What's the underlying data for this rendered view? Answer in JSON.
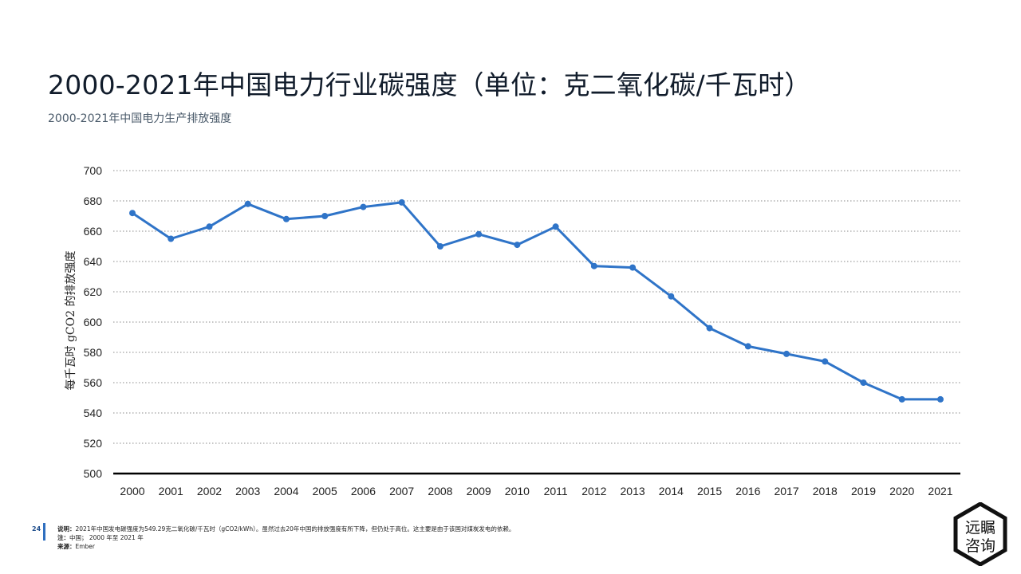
{
  "page": {
    "title": "2000-2021年中国电力行业碳强度（单位：克二氧化碳/千瓦时）",
    "subtitle": "2000-2021年中国电力生产排放强度",
    "page_number": "24",
    "note_label": "说明：",
    "note_text": "2021年中国发电碳强度为549.29克二氧化碳/千瓦时（gCO2/kWh）。虽然过去20年中国的排放强度有所下降，但仍处于高位。这主要是由于该国对煤炭发电的依赖。",
    "region_label": "注：",
    "region_text": "中国；  2000 年至 2021 年",
    "source_label": "来源：",
    "source_text": "Ember",
    "logo_line1": "远瞩",
    "logo_line2": "咨询"
  },
  "chart_data": {
    "type": "line",
    "title": "",
    "xlabel": "",
    "ylabel": "每千瓦时 gCO2 的排放强度",
    "categories": [
      "2000",
      "2001",
      "2002",
      "2003",
      "2004",
      "2005",
      "2006",
      "2007",
      "2008",
      "2009",
      "2010",
      "2011",
      "2012",
      "2013",
      "2014",
      "2015",
      "2016",
      "2017",
      "2018",
      "2019",
      "2020",
      "2021"
    ],
    "values": [
      672,
      655,
      663,
      678,
      668,
      670,
      676,
      679,
      650,
      658,
      651,
      663,
      637,
      636,
      617,
      596,
      584,
      579,
      574,
      560,
      549,
      549
    ],
    "ylim": [
      500,
      700
    ],
    "yticks": [
      500,
      520,
      540,
      560,
      580,
      600,
      620,
      640,
      660,
      680,
      700
    ],
    "grid": true,
    "line_color": "#2f74c8"
  }
}
